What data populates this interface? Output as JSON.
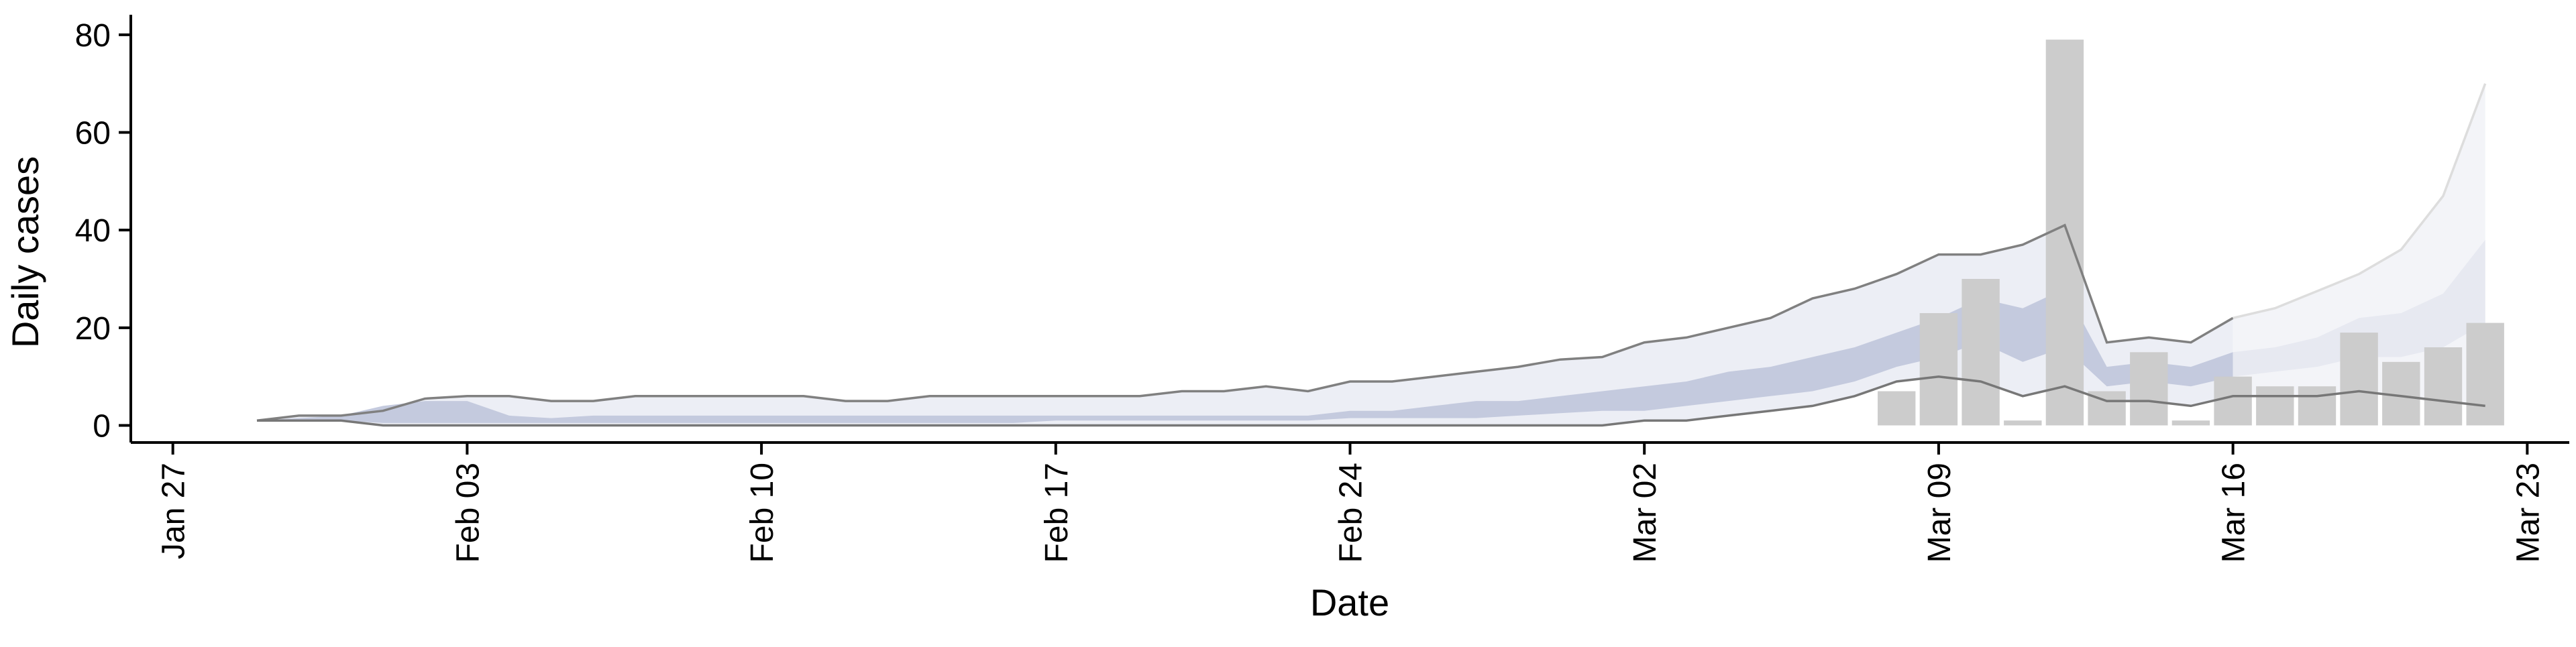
{
  "chart_data": {
    "type": "area",
    "xlabel": "Date",
    "ylabel": "Daily cases",
    "x_axis": {
      "type": "date",
      "range": [
        "2020-01-26",
        "2020-03-24"
      ],
      "ticks": [
        {
          "date": "2020-01-27",
          "label": "Jan 27"
        },
        {
          "date": "2020-02-03",
          "label": "Feb 03"
        },
        {
          "date": "2020-02-10",
          "label": "Feb 10"
        },
        {
          "date": "2020-02-17",
          "label": "Feb 17"
        },
        {
          "date": "2020-02-24",
          "label": "Feb 24"
        },
        {
          "date": "2020-03-02",
          "label": "Mar 02"
        },
        {
          "date": "2020-03-09",
          "label": "Mar 09"
        },
        {
          "date": "2020-03-16",
          "label": "Mar 16"
        },
        {
          "date": "2020-03-23",
          "label": "Mar 23"
        }
      ]
    },
    "y_axis": {
      "range": [
        -3.5,
        83
      ],
      "ticks": [
        0,
        20,
        40,
        60,
        80
      ]
    },
    "colors": {
      "band_outer": "#eceef5",
      "band_inner": "#c4cade",
      "bound_line": "#8a8a8a",
      "bars": "#cccccc",
      "forecast_outer": "#f3f4f8",
      "forecast_inner": "#e7e9f1",
      "forecast_line": "#dddddd"
    },
    "dates": [
      "2020-01-29",
      "2020-01-30",
      "2020-01-31",
      "2020-02-01",
      "2020-02-02",
      "2020-02-03",
      "2020-02-04",
      "2020-02-05",
      "2020-02-06",
      "2020-02-07",
      "2020-02-08",
      "2020-02-09",
      "2020-02-10",
      "2020-02-11",
      "2020-02-12",
      "2020-02-13",
      "2020-02-14",
      "2020-02-15",
      "2020-02-16",
      "2020-02-17",
      "2020-02-18",
      "2020-02-19",
      "2020-02-20",
      "2020-02-21",
      "2020-02-22",
      "2020-02-23",
      "2020-02-24",
      "2020-02-25",
      "2020-02-26",
      "2020-02-27",
      "2020-02-28",
      "2020-02-29",
      "2020-03-01",
      "2020-03-02",
      "2020-03-03",
      "2020-03-04",
      "2020-03-05",
      "2020-03-06",
      "2020-03-07",
      "2020-03-08",
      "2020-03-09",
      "2020-03-10",
      "2020-03-11",
      "2020-03-12",
      "2020-03-13",
      "2020-03-14",
      "2020-03-15",
      "2020-03-16",
      "2020-03-17",
      "2020-03-18",
      "2020-03-19",
      "2020-03-20",
      "2020-03-21",
      "2020-03-22"
    ],
    "series": [
      {
        "role": "upper_bound",
        "values": [
          1,
          2,
          2,
          3,
          5.5,
          6,
          6,
          5,
          5,
          6,
          6,
          6,
          6,
          6,
          5,
          5,
          6,
          6,
          6,
          6,
          6,
          6,
          7,
          7,
          8,
          7,
          9,
          9,
          10,
          11,
          12,
          13.5,
          14,
          17,
          18,
          20,
          22,
          26,
          28,
          31,
          35,
          35,
          37,
          41,
          17,
          18,
          17,
          22,
          24,
          27.5,
          31,
          36,
          47,
          70
        ]
      },
      {
        "role": "lower_bound",
        "values": [
          1,
          1,
          1,
          0,
          0,
          0,
          0,
          0,
          0,
          0,
          0,
          0,
          0,
          0,
          0,
          0,
          0,
          0,
          0,
          0,
          0,
          0,
          0,
          0,
          0,
          0,
          0,
          0,
          0,
          0,
          0,
          0,
          0,
          1,
          1,
          2,
          3,
          4,
          6,
          9,
          10,
          9,
          6,
          8,
          5,
          5,
          4,
          6,
          6,
          6,
          7,
          6,
          5,
          4
        ]
      },
      {
        "role": "inner_upper",
        "values": [
          1,
          1.5,
          2,
          4,
          5,
          5,
          2,
          1.5,
          2,
          2,
          2,
          2,
          2,
          2,
          2,
          2,
          2,
          2,
          2,
          2,
          2,
          2,
          2,
          2,
          2,
          2,
          3,
          3,
          4,
          5,
          5,
          6,
          7,
          8,
          9,
          11,
          12,
          14,
          16,
          19,
          22,
          26,
          24,
          28,
          12,
          13,
          12,
          15,
          16,
          18,
          22,
          23,
          27,
          38
        ]
      },
      {
        "role": "inner_lower",
        "values": [
          1,
          1,
          1,
          0.5,
          0.5,
          0.5,
          0.5,
          0.5,
          0.5,
          0.5,
          0.5,
          0.5,
          0.5,
          0.5,
          0.5,
          0.5,
          0.5,
          0.5,
          0.5,
          1,
          1,
          1,
          1,
          1,
          1,
          1,
          1.5,
          1.5,
          1.5,
          1.5,
          2,
          2.5,
          3,
          3,
          4,
          5,
          6,
          7,
          9,
          12,
          14,
          17,
          13,
          16,
          8,
          9,
          8,
          10,
          11,
          12,
          14,
          14,
          16,
          21
        ]
      }
    ],
    "bars": {
      "dates": [
        "2020-03-07",
        "2020-03-08",
        "2020-03-09",
        "2020-03-10",
        "2020-03-11",
        "2020-03-12",
        "2020-03-13",
        "2020-03-14",
        "2020-03-15",
        "2020-03-16",
        "2020-03-17",
        "2020-03-18",
        "2020-03-19",
        "2020-03-20",
        "2020-03-21",
        "2020-03-22"
      ],
      "values": [
        0,
        7,
        23,
        30,
        1,
        79,
        7,
        15,
        1,
        10,
        8,
        8,
        19,
        13,
        16,
        21
      ]
    },
    "forecast_start": "2020-03-16"
  }
}
